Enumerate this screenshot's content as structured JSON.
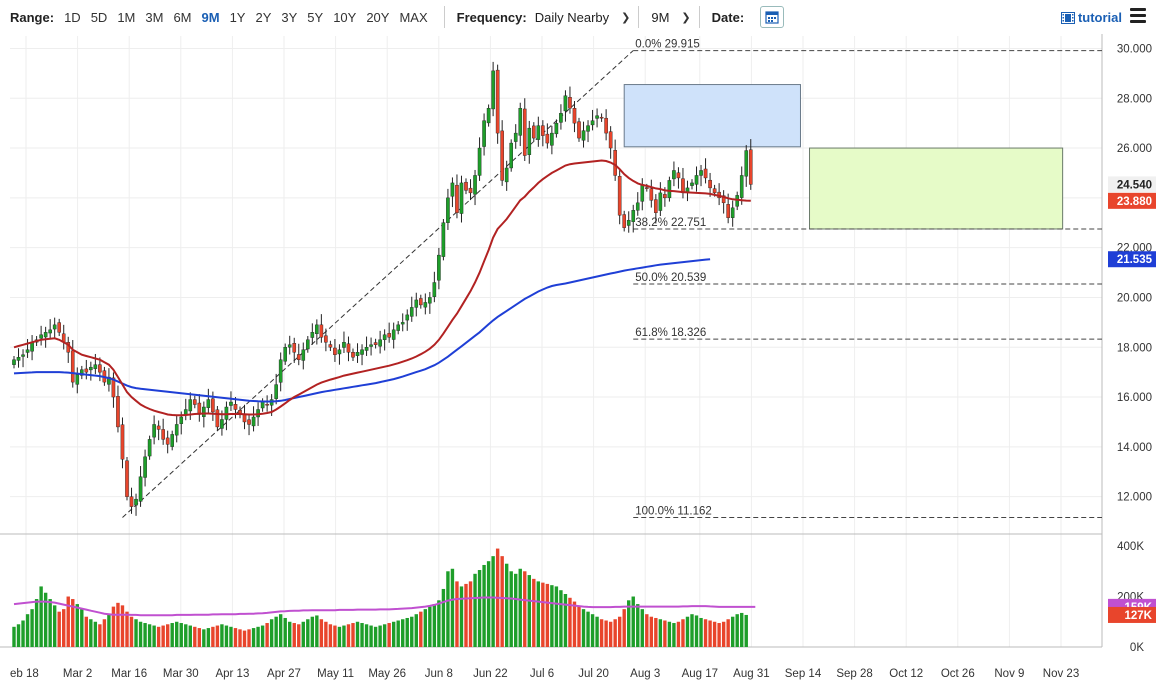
{
  "toolbar": {
    "range_label": "Range:",
    "ranges": [
      "1D",
      "5D",
      "1M",
      "3M",
      "6M",
      "9M",
      "1Y",
      "2Y",
      "3Y",
      "5Y",
      "10Y",
      "20Y",
      "MAX"
    ],
    "active_range": "9M",
    "frequency_label": "Frequency:",
    "frequency_value": "Daily Nearby",
    "period_value": "9M",
    "date_label": "Date:",
    "tutorial_label": "tutorial"
  },
  "colors": {
    "up": "#1e9e2a",
    "down": "#e8452c",
    "ma_short": "#b22222",
    "ma_long": "#1f3fd6",
    "volume_ma": "#c050d0",
    "box_blue": "#cfe2fa",
    "box_green": "#e6fbc8"
  },
  "chart_data": {
    "type": "candlestick",
    "y_ticks": [
      "30.000",
      "28.000",
      "26.000",
      "24.000",
      "22.000",
      "20.000",
      "18.000",
      "16.000",
      "14.000",
      "12.000"
    ],
    "ylim": [
      10.5,
      30.5
    ],
    "x_ticks": [
      "eb 18",
      "Mar 2",
      "Mar 16",
      "Mar 30",
      "Apr 13",
      "Apr 27",
      "May 11",
      "May 26",
      "Jun 8",
      "Jun 22",
      "Jul 6",
      "Jul 20",
      "Aug 3",
      "Aug 17",
      "Aug 31",
      "Sep 14",
      "Sep 28",
      "Oct 12",
      "Oct 26",
      "Nov 9",
      "Nov 23"
    ],
    "price_labels": {
      "last": "24.540",
      "ma_short": "23.880",
      "ma_long": "21.535"
    },
    "fib_levels": [
      {
        "label": "0.0% 29.915",
        "value": 29.915
      },
      {
        "label": "38.2% 22.751",
        "value": 22.751
      },
      {
        "label": "50.0% 20.539",
        "value": 20.539
      },
      {
        "label": "61.8% 18.326",
        "value": 18.326
      },
      {
        "label": "100.0% 11.162",
        "value": 11.162
      }
    ],
    "close": [
      17.5,
      17.6,
      17.7,
      17.9,
      18.2,
      18.3,
      18.5,
      18.6,
      18.7,
      18.9,
      18.6,
      18.2,
      17.8,
      16.6,
      16.9,
      17.1,
      17.0,
      17.2,
      17.3,
      17.0,
      16.6,
      16.8,
      16.0,
      14.8,
      13.5,
      12.0,
      11.6,
      11.9,
      12.8,
      13.6,
      14.3,
      14.9,
      14.7,
      14.3,
      14.1,
      14.5,
      14.9,
      15.2,
      15.5,
      15.9,
      15.7,
      15.3,
      15.6,
      15.9,
      15.4,
      14.8,
      15.1,
      15.6,
      15.8,
      15.5,
      15.3,
      15.0,
      14.9,
      15.2,
      15.5,
      15.8,
      15.7,
      15.9,
      16.5,
      17.5,
      18.0,
      18.1,
      17.8,
      17.5,
      17.9,
      18.3,
      18.6,
      18.9,
      18.4,
      18.2,
      18.0,
      17.7,
      17.9,
      18.2,
      17.8,
      17.6,
      17.8,
      17.9,
      18.0,
      18.1,
      18.1,
      18.3,
      18.5,
      18.4,
      18.7,
      18.9,
      19.0,
      19.3,
      19.6,
      19.9,
      19.7,
      19.8,
      20.0,
      20.6,
      21.7,
      23.0,
      24.0,
      24.6,
      23.4,
      24.6,
      24.3,
      24.2,
      24.9,
      26.0,
      27.1,
      27.6,
      29.1,
      26.6,
      24.7,
      25.2,
      26.2,
      26.6,
      27.6,
      25.7,
      26.8,
      26.4,
      26.9,
      26.5,
      26.2,
      26.6,
      27.0,
      27.4,
      28.1,
      27.6,
      27.0,
      26.4,
      26.7,
      26.9,
      27.1,
      27.3,
      27.2,
      26.6,
      26.0,
      24.9,
      23.3,
      22.8,
      23.1,
      23.5,
      23.8,
      24.5,
      24.4,
      23.9,
      23.4,
      24.2,
      24.0,
      24.7,
      25.1,
      24.8,
      24.2,
      24.4,
      24.6,
      24.9,
      25.1,
      24.8,
      24.4,
      24.2,
      24.0,
      23.8,
      23.2,
      23.6,
      24.1,
      24.9,
      25.9,
      24.54
    ],
    "ma_short": [
      18.0,
      18.05,
      18.1,
      18.15,
      18.2,
      18.25,
      18.3,
      18.32,
      18.34,
      18.36,
      18.3,
      18.2,
      18.1,
      17.9,
      17.8,
      17.7,
      17.65,
      17.6,
      17.55,
      17.5,
      17.4,
      17.3,
      17.1,
      16.8,
      16.5,
      16.2,
      16.0,
      15.85,
      15.7,
      15.6,
      15.52,
      15.45,
      15.4,
      15.35,
      15.3,
      15.28,
      15.27,
      15.27,
      15.28,
      15.3,
      15.32,
      15.33,
      15.34,
      15.34,
      15.33,
      15.32,
      15.31,
      15.31,
      15.32,
      15.32,
      15.32,
      15.31,
      15.3,
      15.3,
      15.31,
      15.33,
      15.36,
      15.4,
      15.5,
      15.62,
      15.75,
      15.88,
      16.0,
      16.1,
      16.2,
      16.3,
      16.4,
      16.5,
      16.58,
      16.64,
      16.7,
      16.75,
      16.8,
      16.86,
      16.9,
      16.94,
      16.98,
      17.02,
      17.06,
      17.1,
      17.14,
      17.18,
      17.22,
      17.26,
      17.31,
      17.36,
      17.42,
      17.48,
      17.55,
      17.63,
      17.72,
      17.82,
      17.94,
      18.1,
      18.3,
      18.55,
      18.82,
      19.1,
      19.35,
      19.65,
      19.95,
      20.25,
      20.6,
      21.0,
      21.45,
      21.9,
      22.4,
      22.75,
      22.95,
      23.15,
      23.4,
      23.65,
      23.9,
      24.05,
      24.25,
      24.42,
      24.6,
      24.75,
      24.88,
      25.0,
      25.1,
      25.2,
      25.3,
      25.35,
      25.38,
      25.4,
      25.42,
      25.44,
      25.46,
      25.48,
      25.5,
      25.48,
      25.42,
      25.32,
      25.15,
      24.95,
      24.8,
      24.68,
      24.58,
      24.52,
      24.48,
      24.43,
      24.38,
      24.35,
      24.3,
      24.28,
      24.27,
      24.25,
      24.23,
      24.22,
      24.21,
      24.2,
      24.19,
      24.18,
      24.16,
      24.12,
      24.08,
      24.04,
      23.98,
      23.94,
      23.92,
      23.9,
      23.89,
      23.88
    ],
    "ma_long": [
      16.95,
      16.96,
      16.97,
      16.98,
      16.99,
      17.0,
      17.0,
      17.0,
      17.0,
      17.0,
      17.0,
      16.99,
      16.98,
      16.96,
      16.94,
      16.92,
      16.9,
      16.88,
      16.86,
      16.84,
      16.8,
      16.76,
      16.7,
      16.62,
      16.54,
      16.46,
      16.4,
      16.36,
      16.33,
      16.31,
      16.29,
      16.27,
      16.25,
      16.23,
      16.21,
      16.19,
      16.17,
      16.15,
      16.13,
      16.11,
      16.09,
      16.07,
      16.05,
      16.03,
      16.01,
      15.99,
      15.97,
      15.95,
      15.93,
      15.91,
      15.89,
      15.87,
      15.85,
      15.84,
      15.83,
      15.82,
      15.82,
      15.82,
      15.83,
      15.85,
      15.88,
      15.92,
      15.96,
      16.0,
      16.04,
      16.08,
      16.12,
      16.16,
      16.2,
      16.23,
      16.26,
      16.29,
      16.32,
      16.35,
      16.38,
      16.41,
      16.44,
      16.47,
      16.5,
      16.53,
      16.56,
      16.6,
      16.64,
      16.68,
      16.72,
      16.77,
      16.82,
      16.88,
      16.94,
      17.0,
      17.06,
      17.12,
      17.2,
      17.28,
      17.38,
      17.5,
      17.62,
      17.76,
      17.9,
      18.04,
      18.18,
      18.32,
      18.46,
      18.6,
      18.76,
      18.92,
      19.08,
      19.22,
      19.34,
      19.46,
      19.58,
      19.7,
      19.82,
      19.94,
      20.04,
      20.14,
      20.24,
      20.32,
      20.4,
      20.46,
      20.5,
      20.53,
      20.56,
      20.6,
      20.64,
      20.68,
      20.72,
      20.76,
      20.8,
      20.84,
      20.88,
      20.92,
      20.96,
      21.0,
      21.04,
      21.08,
      21.11,
      21.14,
      21.17,
      21.2,
      21.23,
      21.26,
      21.29,
      21.32,
      21.34,
      21.36,
      21.38,
      21.4,
      21.42,
      21.44,
      21.46,
      21.48,
      21.5,
      21.52,
      21.535
    ],
    "volume_axis": [
      "400K",
      "200K",
      "0K"
    ],
    "volume_labels": {
      "volume_ma": "159K",
      "last_volume": "127K"
    },
    "volume_k": [
      80,
      90,
      105,
      130,
      150,
      190,
      240,
      215,
      190,
      165,
      140,
      150,
      200,
      190,
      170,
      150,
      120,
      110,
      100,
      90,
      110,
      130,
      160,
      175,
      165,
      140,
      120,
      110,
      100,
      95,
      90,
      85,
      80,
      85,
      90,
      95,
      100,
      95,
      90,
      85,
      80,
      75,
      70,
      75,
      80,
      85,
      90,
      85,
      80,
      75,
      70,
      65,
      70,
      75,
      80,
      85,
      95,
      110,
      120,
      130,
      115,
      100,
      95,
      90,
      100,
      110,
      120,
      125,
      110,
      100,
      90,
      85,
      80,
      85,
      90,
      95,
      100,
      95,
      90,
      85,
      80,
      85,
      90,
      95,
      100,
      105,
      110,
      115,
      120,
      130,
      140,
      150,
      160,
      170,
      185,
      230,
      300,
      310,
      260,
      240,
      250,
      260,
      290,
      305,
      325,
      340,
      360,
      390,
      360,
      330,
      300,
      290,
      310,
      300,
      285,
      270,
      260,
      255,
      250,
      245,
      240,
      225,
      210,
      195,
      180,
      160,
      150,
      140,
      130,
      120,
      110,
      105,
      100,
      110,
      120,
      150,
      185,
      200,
      170,
      150,
      130,
      120,
      115,
      110,
      105,
      100,
      95,
      100,
      110,
      120,
      130,
      125,
      115,
      110,
      105,
      100,
      95,
      100,
      110,
      120,
      130,
      135,
      127
    ],
    "volume_ma_k": [
      170,
      172,
      174,
      176,
      178,
      180,
      180,
      180,
      178,
      176,
      172,
      168,
      164,
      160,
      156,
      152,
      148,
      144,
      140,
      136,
      132,
      130,
      128,
      128,
      128,
      128,
      127,
      127,
      126,
      126,
      126,
      126,
      126,
      126,
      126,
      126,
      127,
      127,
      127,
      127,
      128,
      128,
      128,
      128,
      129,
      129,
      130,
      130,
      130,
      130,
      131,
      131,
      132,
      132,
      133,
      134,
      135,
      137,
      139,
      141,
      142,
      143,
      144,
      144,
      145,
      145,
      146,
      146,
      146,
      146,
      146,
      146,
      147,
      147,
      147,
      147,
      148,
      148,
      148,
      148,
      148,
      149,
      149,
      149,
      150,
      151,
      152,
      153,
      154,
      156,
      158,
      160,
      163,
      167,
      172,
      178,
      184,
      188,
      190,
      191,
      192,
      193,
      194,
      195,
      196,
      196,
      196,
      195,
      194,
      193,
      192,
      190,
      188,
      186,
      184,
      182,
      180,
      178,
      176,
      174,
      172,
      170,
      168,
      166,
      164,
      162,
      160,
      159,
      158,
      158,
      158,
      158,
      158,
      159,
      159,
      160,
      160,
      160,
      160,
      160,
      160,
      160,
      160,
      160,
      160,
      160,
      160,
      160,
      161,
      161,
      162,
      162,
      162,
      162,
      161,
      160,
      159,
      159,
      159,
      159,
      159,
      159,
      159,
      159,
      159
    ]
  }
}
